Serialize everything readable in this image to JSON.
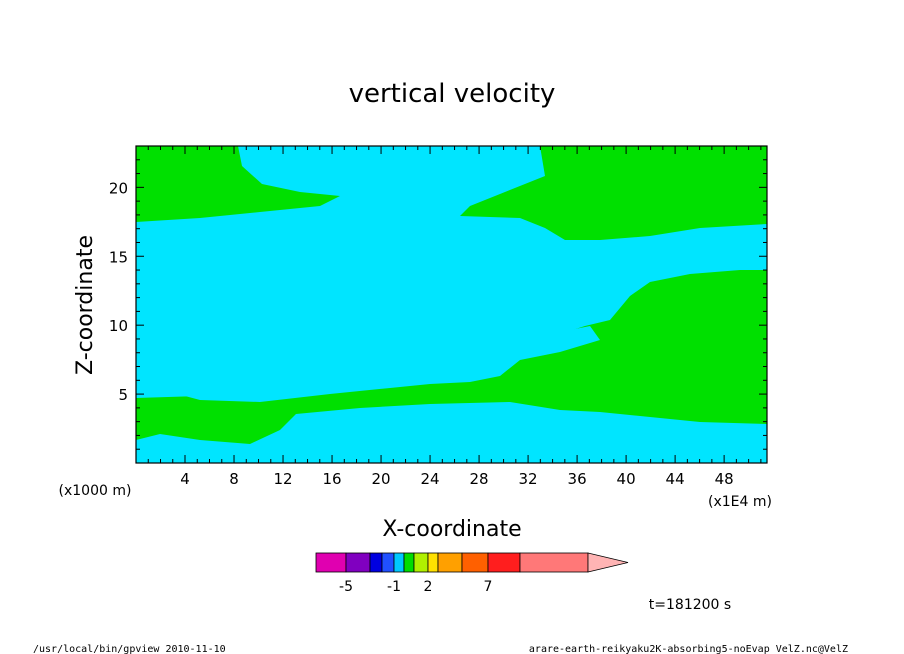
{
  "chart_data": {
    "type": "heatmap",
    "title": "vertical velocity",
    "xlabel": "X-coordinate",
    "ylabel": "Z-coordinate",
    "x_unit": "(x1E4 m)",
    "y_unit": "(x1000 m)",
    "xlim": [
      0,
      51.5
    ],
    "ylim": [
      0,
      23
    ],
    "x_ticks": [
      4,
      8,
      12,
      16,
      20,
      24,
      28,
      32,
      36,
      40,
      44,
      48
    ],
    "y_ticks": [
      5,
      10,
      15,
      20
    ],
    "colorbar": {
      "labels": [
        "-5",
        "-1",
        "2",
        "7"
      ],
      "colors": [
        "#e000b0",
        "#8000c0",
        "#0000e0",
        "#2050ff",
        "#00c8ff",
        "#00dd00",
        "#b0f000",
        "#ffe000",
        "#ffa000",
        "#ff6000",
        "#ff1e1e",
        "#ff7878",
        "#ffb4b4"
      ]
    },
    "fill_colors": {
      "negative_small": "#00e5ff",
      "positive_small": "#00e000"
    },
    "time_label": "t=181200 s"
  },
  "footer": {
    "left": "/usr/local/bin/gpview  2010-11-10",
    "right": "arare-earth-reikyaku2K-absorbing5-noEvap_VelZ.nc@VelZ"
  }
}
